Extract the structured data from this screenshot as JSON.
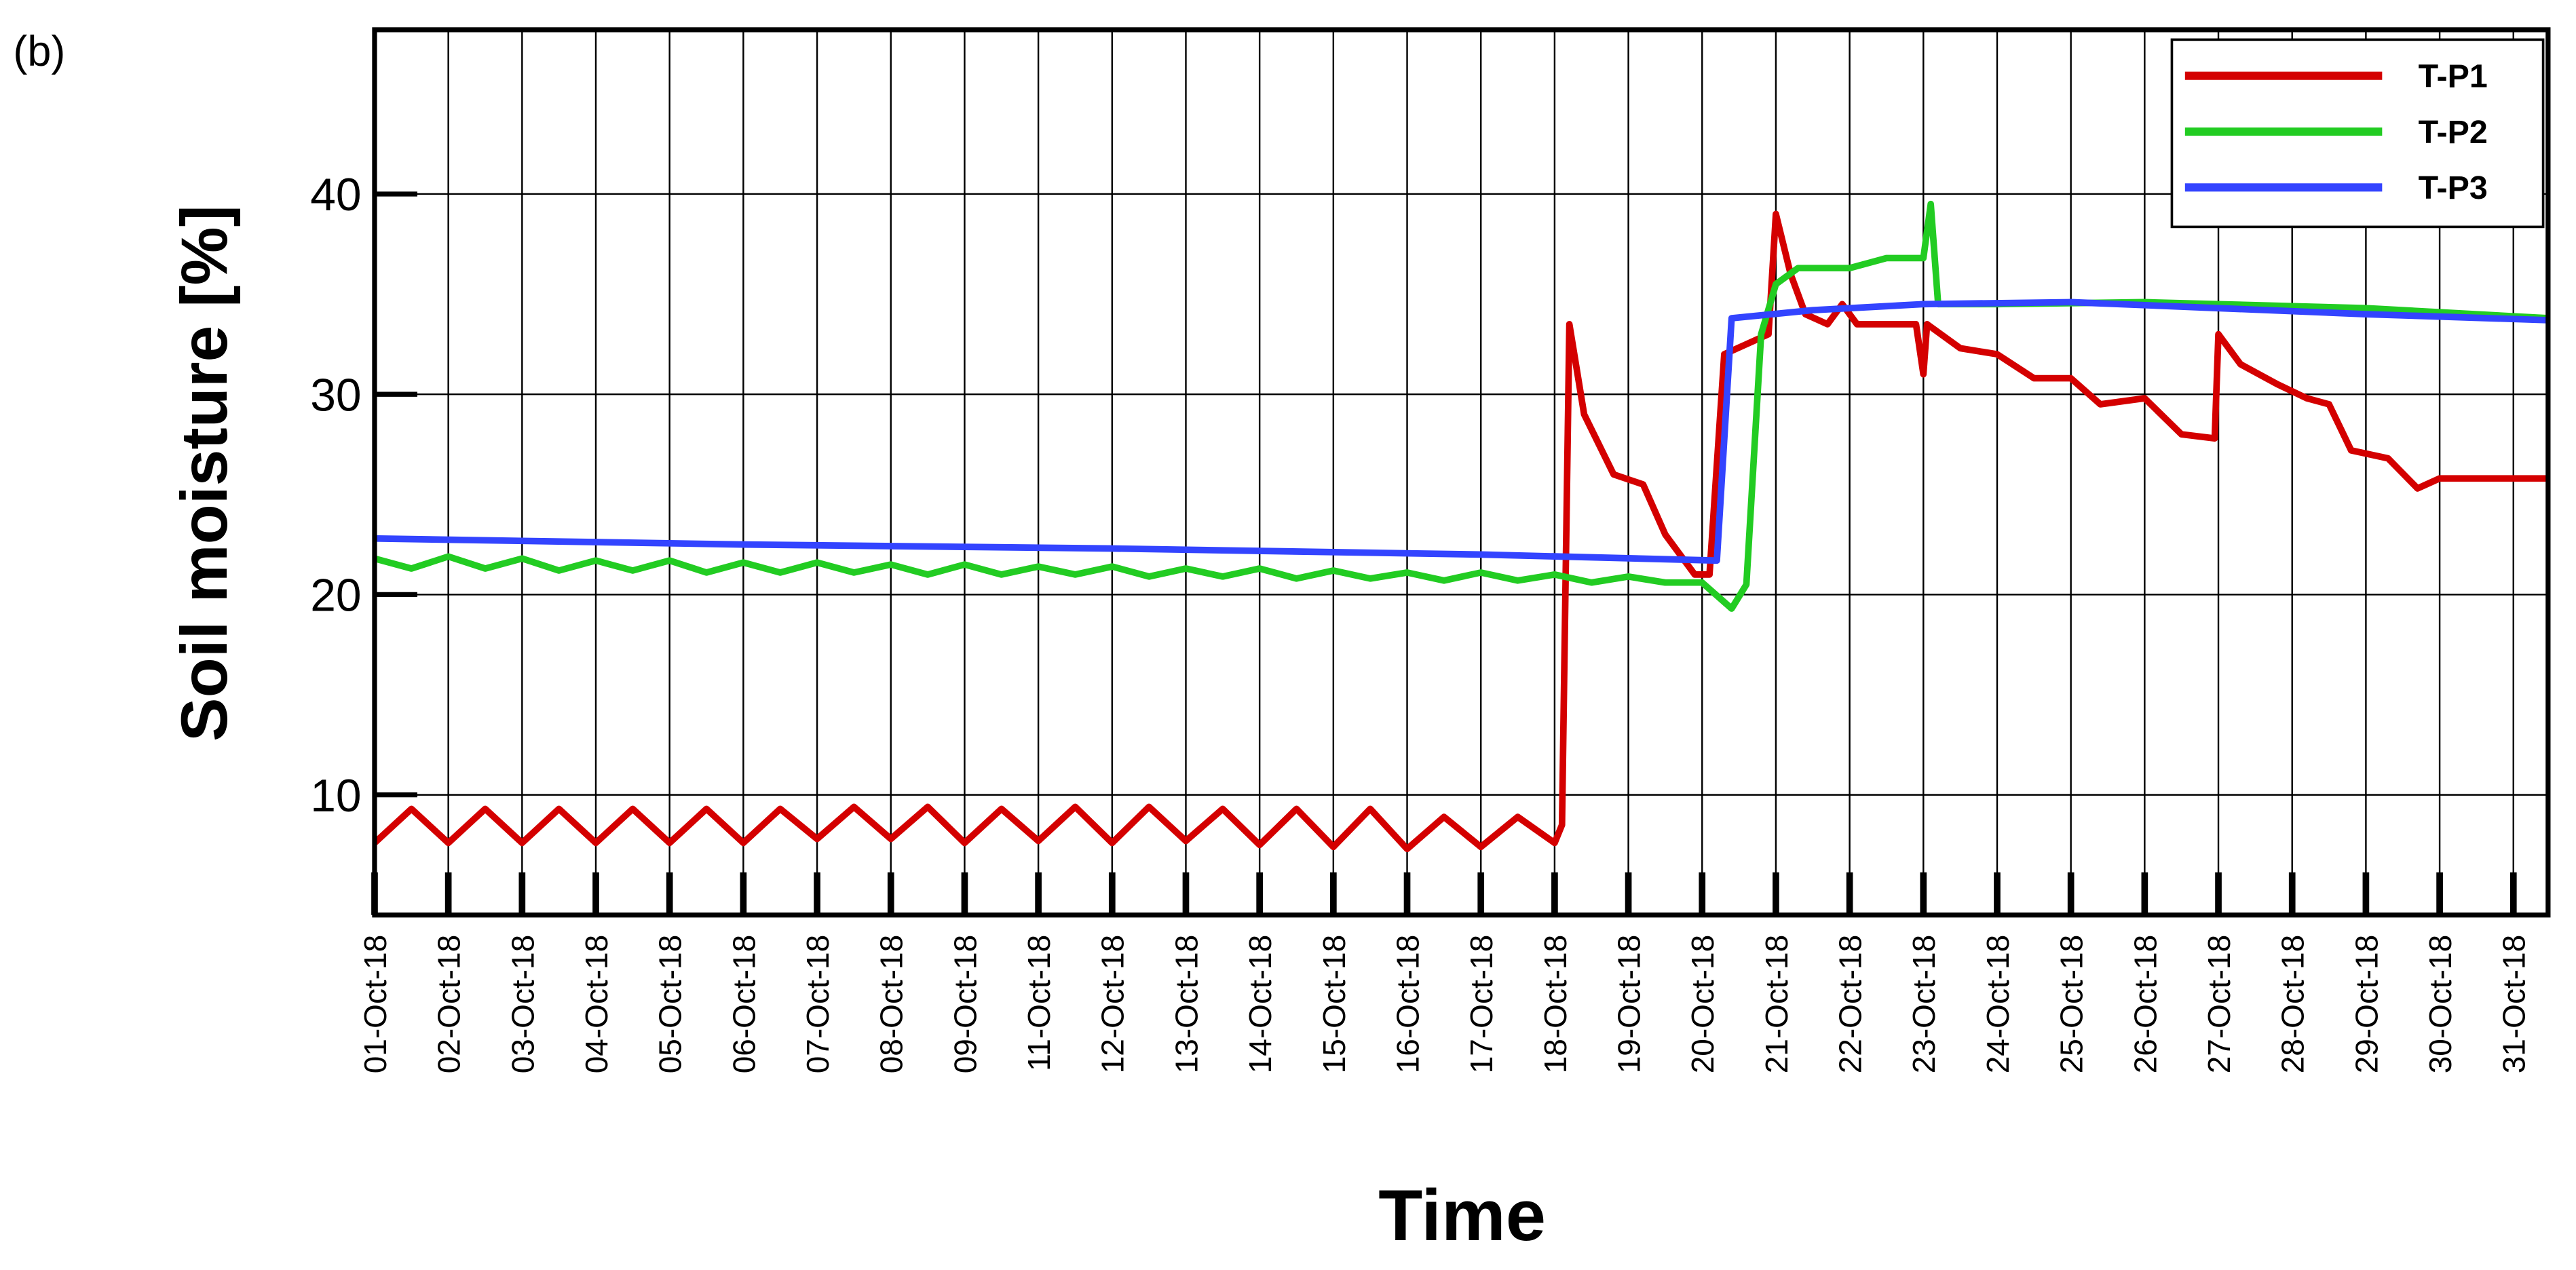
{
  "chart_data": {
    "type": "line",
    "panel_label": "(b)",
    "x_label": "Time",
    "y_label": "Soil moisture [%]",
    "xlim": [
      0,
      29.47
    ],
    "xticks": [
      {
        "value": 0,
        "label": "01-Oct-18"
      },
      {
        "value": 1,
        "label": "02-Oct-18"
      },
      {
        "value": 2,
        "label": "03-Oct-18"
      },
      {
        "value": 3,
        "label": "04-Oct-18"
      },
      {
        "value": 4,
        "label": "05-Oct-18"
      },
      {
        "value": 5,
        "label": "06-Oct-18"
      },
      {
        "value": 6,
        "label": "07-Oct-18"
      },
      {
        "value": 7,
        "label": "08-Oct-18"
      },
      {
        "value": 8,
        "label": "09-Oct-18"
      },
      {
        "value": 9,
        "label": "11-Oct-18"
      },
      {
        "value": 10,
        "label": "12-Oct-18"
      },
      {
        "value": 11,
        "label": "13-Oct-18"
      },
      {
        "value": 12,
        "label": "14-Oct-18"
      },
      {
        "value": 13,
        "label": "15-Oct-18"
      },
      {
        "value": 14,
        "label": "16-Oct-18"
      },
      {
        "value": 15,
        "label": "17-Oct-18"
      },
      {
        "value": 16,
        "label": "18-Oct-18"
      },
      {
        "value": 17,
        "label": "19-Oct-18"
      },
      {
        "value": 18,
        "label": "20-Oct-18"
      },
      {
        "value": 19,
        "label": "21-Oct-18"
      },
      {
        "value": 20,
        "label": "22-Oct-18"
      },
      {
        "value": 21,
        "label": "23-Oct-18"
      },
      {
        "value": 22,
        "label": "24-Oct-18"
      },
      {
        "value": 23,
        "label": "25-Oct-18"
      },
      {
        "value": 24,
        "label": "26-Oct-18"
      },
      {
        "value": 25,
        "label": "27-Oct-18"
      },
      {
        "value": 26,
        "label": "28-Oct-18"
      },
      {
        "value": 27,
        "label": "29-Oct-18"
      },
      {
        "value": 28,
        "label": "30-Oct-18"
      },
      {
        "value": 29,
        "label": "31-Oct-18"
      }
    ],
    "ylim": [
      4,
      48.2
    ],
    "yticks": [
      10,
      20,
      30,
      40
    ],
    "grid": true,
    "legend": "upper right",
    "series": [
      {
        "name": "T-P1",
        "color": "#d40000",
        "x": [
          0,
          0.5,
          1,
          1.5,
          2,
          2.5,
          3,
          3.5,
          4,
          4.5,
          5,
          5.5,
          6,
          6.5,
          7,
          7.5,
          8,
          8.5,
          9,
          9.5,
          10,
          10.5,
          11,
          11.5,
          12,
          12.5,
          13,
          13.5,
          14,
          14.5,
          15,
          15.5,
          16,
          16.1,
          16.2,
          16.4,
          16.8,
          17.2,
          17.5,
          17.9,
          18.1,
          18.3,
          18.6,
          18.9,
          19.0,
          19.2,
          19.4,
          19.7,
          19.9,
          20.1,
          20.9,
          21.0,
          21.05,
          21.5,
          22.0,
          22.5,
          23.0,
          23.4,
          24.0,
          24.5,
          24.95,
          25.0,
          25.3,
          25.8,
          26.2,
          26.5,
          26.8,
          27.3,
          27.7,
          28.0,
          29.47
        ],
        "values": [
          7.6,
          9.3,
          7.6,
          9.3,
          7.6,
          9.3,
          7.6,
          9.3,
          7.6,
          9.3,
          7.6,
          9.3,
          7.8,
          9.4,
          7.8,
          9.4,
          7.6,
          9.3,
          7.7,
          9.4,
          7.6,
          9.4,
          7.7,
          9.3,
          7.5,
          9.3,
          7.4,
          9.3,
          7.3,
          8.9,
          7.4,
          8.9,
          7.6,
          8.5,
          33.5,
          29,
          26,
          25.5,
          23,
          21,
          21,
          32,
          32.5,
          33,
          39,
          36,
          34,
          33.5,
          34.5,
          33.5,
          33.5,
          31,
          33.5,
          32.3,
          32.0,
          30.8,
          30.8,
          29.5,
          29.8,
          28,
          27.8,
          33,
          31.5,
          30.5,
          29.8,
          29.5,
          27.2,
          26.8,
          25.3,
          25.8,
          25.8
        ]
      },
      {
        "name": "T-P2",
        "color": "#22cc22",
        "x": [
          0,
          0.5,
          1,
          1.5,
          2,
          2.5,
          3,
          3.5,
          4,
          4.5,
          5,
          5.5,
          6,
          6.5,
          7,
          7.5,
          8,
          8.5,
          9,
          9.5,
          10,
          10.5,
          11,
          11.5,
          12,
          12.5,
          13,
          13.5,
          14,
          14.5,
          15,
          15.5,
          16,
          16.5,
          17,
          17.5,
          18.0,
          18.4,
          18.6,
          18.8,
          19.0,
          19.3,
          20.0,
          20.5,
          21.0,
          21.1,
          21.2,
          22,
          24,
          25,
          27,
          29.47
        ],
        "values": [
          21.8,
          21.3,
          21.9,
          21.3,
          21.8,
          21.2,
          21.7,
          21.2,
          21.7,
          21.1,
          21.6,
          21.1,
          21.6,
          21.1,
          21.5,
          21.0,
          21.5,
          21.0,
          21.4,
          21.0,
          21.4,
          20.9,
          21.3,
          20.9,
          21.3,
          20.8,
          21.2,
          20.8,
          21.1,
          20.7,
          21.1,
          20.7,
          21.0,
          20.6,
          20.9,
          20.6,
          20.6,
          19.3,
          20.5,
          33,
          35.5,
          36.3,
          36.3,
          36.8,
          36.8,
          39.5,
          34.5,
          34.5,
          34.6,
          34.5,
          34.3,
          33.8
        ]
      },
      {
        "name": "T-P3",
        "color": "#3344ff",
        "x": [
          0,
          5,
          10,
          15,
          18.2,
          18.4,
          19.5,
          21,
          23,
          25,
          27,
          29.47
        ],
        "values": [
          22.8,
          22.5,
          22.3,
          22.0,
          21.7,
          33.8,
          34.2,
          34.5,
          34.6,
          34.3,
          34.0,
          33.7
        ]
      }
    ]
  }
}
